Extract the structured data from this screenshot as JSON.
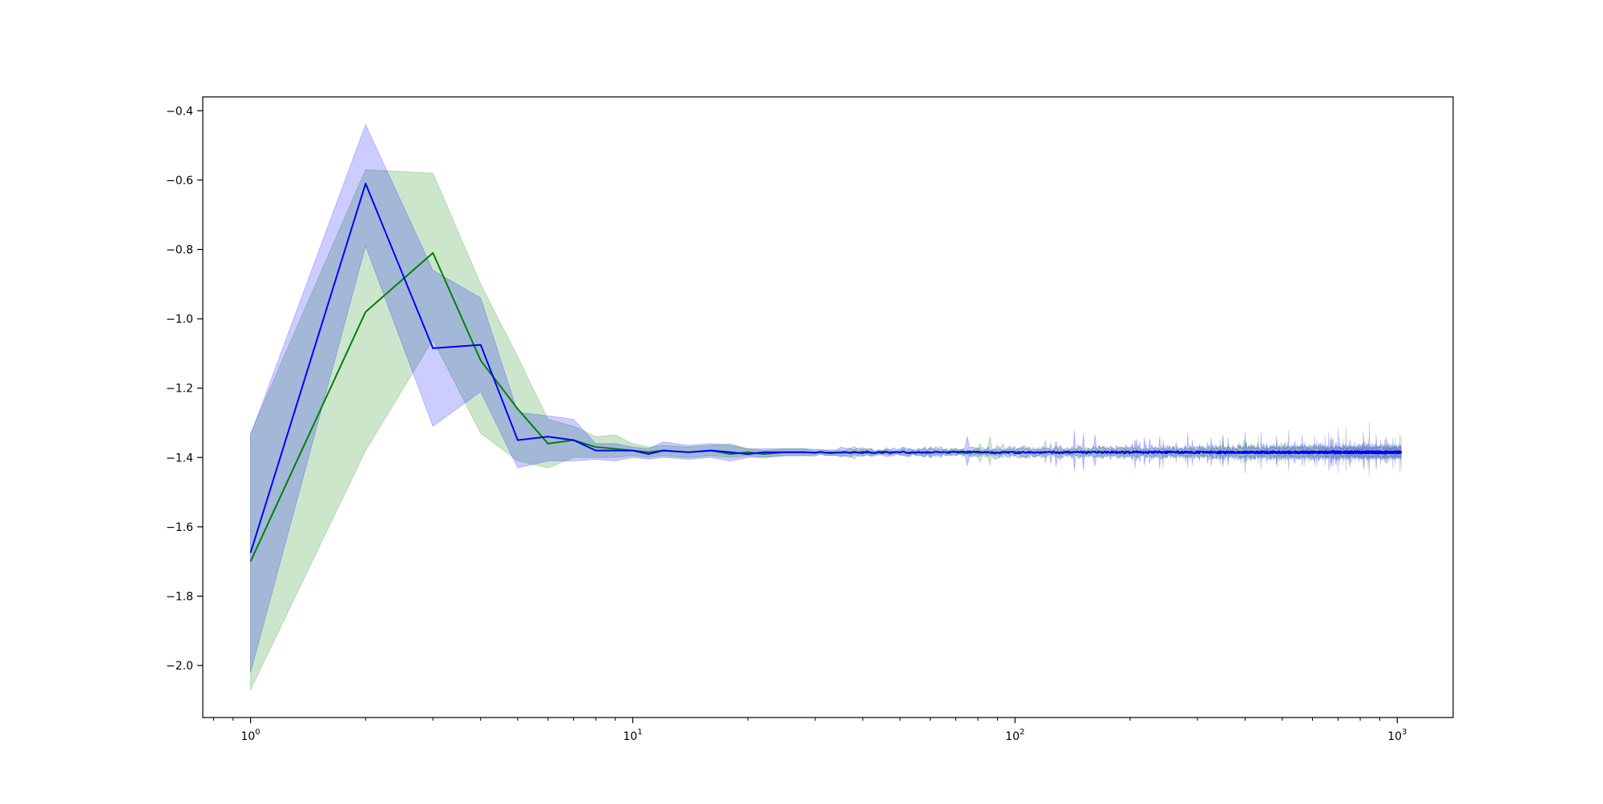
{
  "chart_data": {
    "type": "line",
    "title": "",
    "xlabel": "",
    "ylabel": "",
    "x_scale": "log",
    "xlim": [
      0.75,
      1400
    ],
    "ylim": [
      -2.15,
      -0.36
    ],
    "grid": false,
    "x_ticks": [
      {
        "value": 1,
        "label": "10^0"
      },
      {
        "value": 10,
        "label": "10^1"
      },
      {
        "value": 100,
        "label": "10^2"
      },
      {
        "value": 1000,
        "label": "10^3"
      }
    ],
    "y_ticks": [
      {
        "value": -0.4,
        "label": "−0.4"
      },
      {
        "value": -0.6,
        "label": "−0.6"
      },
      {
        "value": -0.8,
        "label": "−0.8"
      },
      {
        "value": -1.0,
        "label": "−1.0"
      },
      {
        "value": -1.2,
        "label": "−1.2"
      },
      {
        "value": -1.4,
        "label": "−1.4"
      },
      {
        "value": -1.6,
        "label": "−1.6"
      },
      {
        "value": -1.8,
        "label": "−1.8"
      },
      {
        "value": -2.0,
        "label": "−2.0"
      }
    ],
    "tail": {
      "from_x": 30,
      "to_x": 1024,
      "level": -1.385
    },
    "series": [
      {
        "color": "#008000",
        "band_color": "#008000",
        "x": [
          1,
          2,
          3,
          4,
          5,
          6,
          7,
          8,
          9,
          10,
          11,
          12,
          14,
          16,
          18,
          20,
          22,
          25,
          28
        ],
        "y": [
          -1.7,
          -0.98,
          -0.81,
          -1.12,
          -1.26,
          -1.36,
          -1.35,
          -1.37,
          -1.375,
          -1.38,
          -1.385,
          -1.38,
          -1.385,
          -1.38,
          -1.39,
          -1.385,
          -1.39,
          -1.385,
          -1.385
        ],
        "lower": [
          -2.07,
          -1.38,
          -1.06,
          -1.33,
          -1.41,
          -1.43,
          -1.4,
          -1.4,
          -1.4,
          -1.395,
          -1.4,
          -1.395,
          -1.4,
          -1.395,
          -1.4,
          -1.395,
          -1.4,
          -1.395,
          -1.395
        ],
        "upper": [
          -1.33,
          -0.57,
          -0.58,
          -0.9,
          -1.11,
          -1.29,
          -1.31,
          -1.34,
          -1.335,
          -1.36,
          -1.37,
          -1.365,
          -1.37,
          -1.365,
          -1.36,
          -1.375,
          -1.38,
          -1.375,
          -1.375
        ],
        "tail_mean_amp": 0.003,
        "tail_band_amp": 0.012,
        "seed": 11
      },
      {
        "color": "#0000ff",
        "band_color": "#0000ff",
        "x": [
          1,
          2,
          3,
          4,
          5,
          6,
          7,
          8,
          9,
          10,
          11,
          12,
          14,
          16,
          18,
          20,
          22,
          25,
          28
        ],
        "y": [
          -1.675,
          -0.61,
          -1.085,
          -1.075,
          -1.35,
          -1.34,
          -1.35,
          -1.38,
          -1.38,
          -1.38,
          -1.39,
          -1.38,
          -1.385,
          -1.38,
          -1.385,
          -1.39,
          -1.385,
          -1.385,
          -1.385
        ],
        "lower": [
          -2.02,
          -0.79,
          -1.31,
          -1.21,
          -1.43,
          -1.41,
          -1.41,
          -1.405,
          -1.41,
          -1.4,
          -1.405,
          -1.4,
          -1.405,
          -1.4,
          -1.41,
          -1.4,
          -1.4,
          -1.395,
          -1.395
        ],
        "upper": [
          -1.335,
          -0.44,
          -0.86,
          -0.94,
          -1.27,
          -1.28,
          -1.29,
          -1.36,
          -1.36,
          -1.37,
          -1.375,
          -1.355,
          -1.365,
          -1.36,
          -1.365,
          -1.375,
          -1.375,
          -1.375,
          -1.375
        ],
        "tail_mean_amp": 0.004,
        "tail_band_amp": 0.015,
        "seed": 23
      }
    ]
  }
}
